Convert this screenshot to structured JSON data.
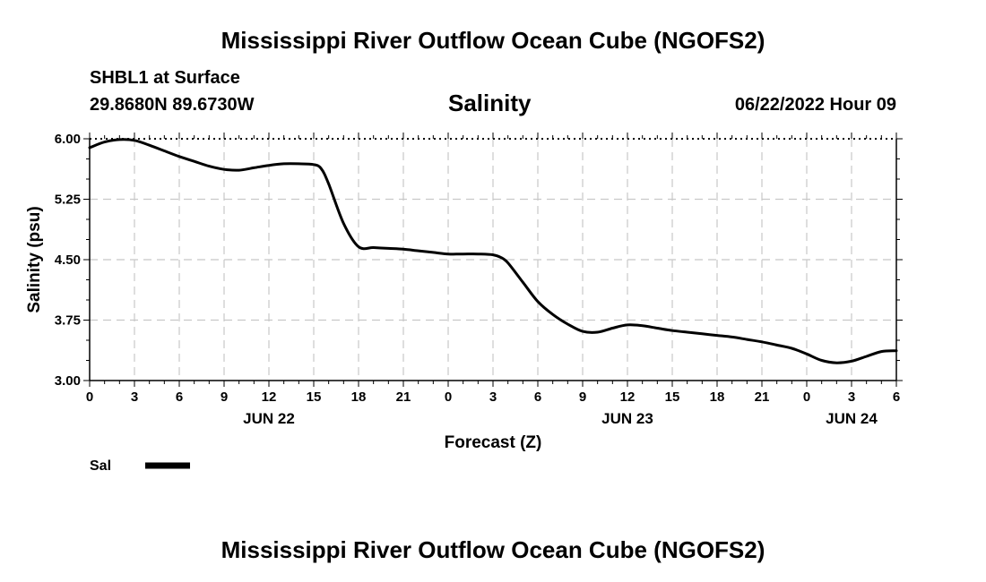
{
  "header": {
    "title": "Mississippi River Outflow Ocean Cube (NGOFS2)",
    "station": "SHBL1 at Surface",
    "coords": "29.8680N  89.6730W",
    "variable": "Salinity",
    "date": "06/22/2022 Hour 09"
  },
  "footer": {
    "title": "Mississippi River Outflow Ocean Cube (NGOFS2)"
  },
  "chart_data": {
    "type": "line",
    "title": "Salinity",
    "xlabel": "Forecast (Z)",
    "ylabel": "Salinity (psu)",
    "ylim": [
      3.0,
      6.0
    ],
    "yticks": [
      "3.00",
      "3.75",
      "4.50",
      "5.25",
      "6.00"
    ],
    "xlim": [
      0,
      54
    ],
    "xticks": [
      "0",
      "3",
      "6",
      "9",
      "12",
      "15",
      "18",
      "21",
      "0",
      "3",
      "6",
      "9",
      "12",
      "15",
      "18",
      "21",
      "0",
      "3",
      "6"
    ],
    "day_labels": [
      {
        "label": "JUN 22",
        "at": 12
      },
      {
        "label": "JUN 23",
        "at": 36
      },
      {
        "label": "JUN 24",
        "at": 51
      }
    ],
    "grid": true,
    "legend": {
      "label": "Sal",
      "placement": "bottom-left"
    },
    "series": [
      {
        "name": "Sal",
        "x": [
          0,
          1,
          2,
          3,
          4,
          5,
          6,
          7,
          8,
          9,
          10,
          11,
          12,
          13,
          14,
          15,
          15.5,
          16,
          17,
          18,
          19,
          20,
          21,
          22,
          23,
          24,
          25,
          26,
          27,
          27.5,
          28,
          29,
          30,
          31,
          32,
          33,
          34,
          35,
          36,
          37,
          38,
          39,
          40,
          41,
          42,
          43,
          44,
          45,
          46,
          47,
          48,
          49,
          50,
          51,
          52,
          53,
          54
        ],
        "y": [
          5.89,
          5.96,
          5.99,
          5.98,
          5.92,
          5.85,
          5.78,
          5.72,
          5.66,
          5.62,
          5.61,
          5.64,
          5.67,
          5.69,
          5.69,
          5.68,
          5.63,
          5.44,
          4.95,
          4.66,
          4.65,
          4.64,
          4.63,
          4.61,
          4.59,
          4.57,
          4.57,
          4.57,
          4.56,
          4.53,
          4.46,
          4.22,
          3.98,
          3.82,
          3.7,
          3.61,
          3.6,
          3.65,
          3.69,
          3.68,
          3.65,
          3.62,
          3.6,
          3.58,
          3.56,
          3.54,
          3.51,
          3.48,
          3.44,
          3.4,
          3.33,
          3.25,
          3.22,
          3.24,
          3.3,
          3.36,
          3.37
        ]
      }
    ]
  }
}
